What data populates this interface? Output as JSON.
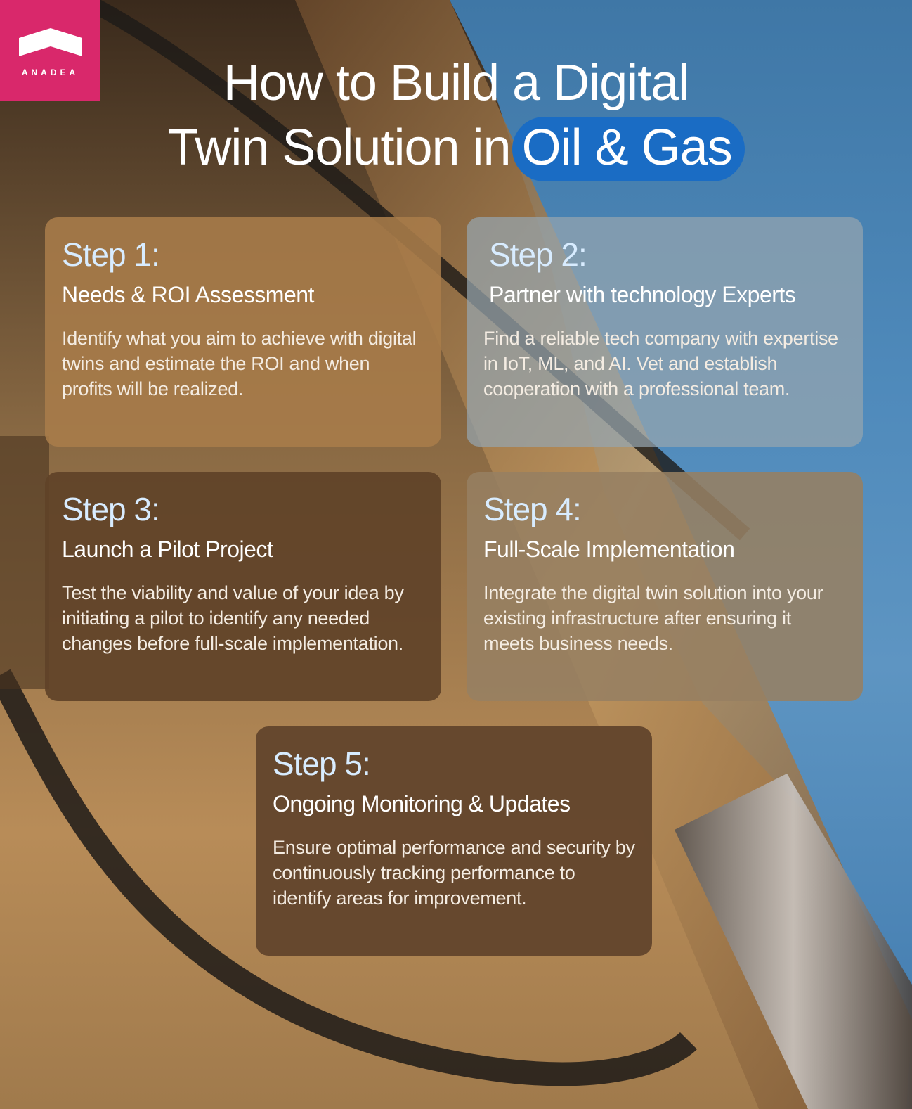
{
  "brand": {
    "name": "ANADEA",
    "logo_icon": "house-roof-icon",
    "color": "#d9286b"
  },
  "title": {
    "line1": "How to Build a Digital",
    "line2_prefix": "Twin Solution in",
    "highlight": "Oil & Gas",
    "highlight_color": "#1a6cc4"
  },
  "steps": [
    {
      "step": "Step 1:",
      "heading": "Needs & ROI Assessment",
      "body": "Identify what you aim to achieve with digital twins and estimate the ROI and when profits will be realized."
    },
    {
      "step": "Step 2:",
      "heading": "Partner with technology Experts",
      "body": "Find a reliable tech company with expertise in IoT, ML, and AI. Vet and establish cooperation with a professional team."
    },
    {
      "step": "Step 3:",
      "heading": "Launch a Pilot Project",
      "body": "Test the viability and value of your idea by initiating a pilot to identify any needed changes before full-scale implementation."
    },
    {
      "step": "Step 4:",
      "heading": "Full-Scale Implementation",
      "body": "Integrate the digital twin solution into your existing infrastructure after ensuring it meets business needs."
    },
    {
      "step": "Step 5:",
      "heading": "Ongoing Monitoring & Updates",
      "body": "Ensure optimal performance and security by continuously tracking performance to identify areas for improvement."
    }
  ]
}
